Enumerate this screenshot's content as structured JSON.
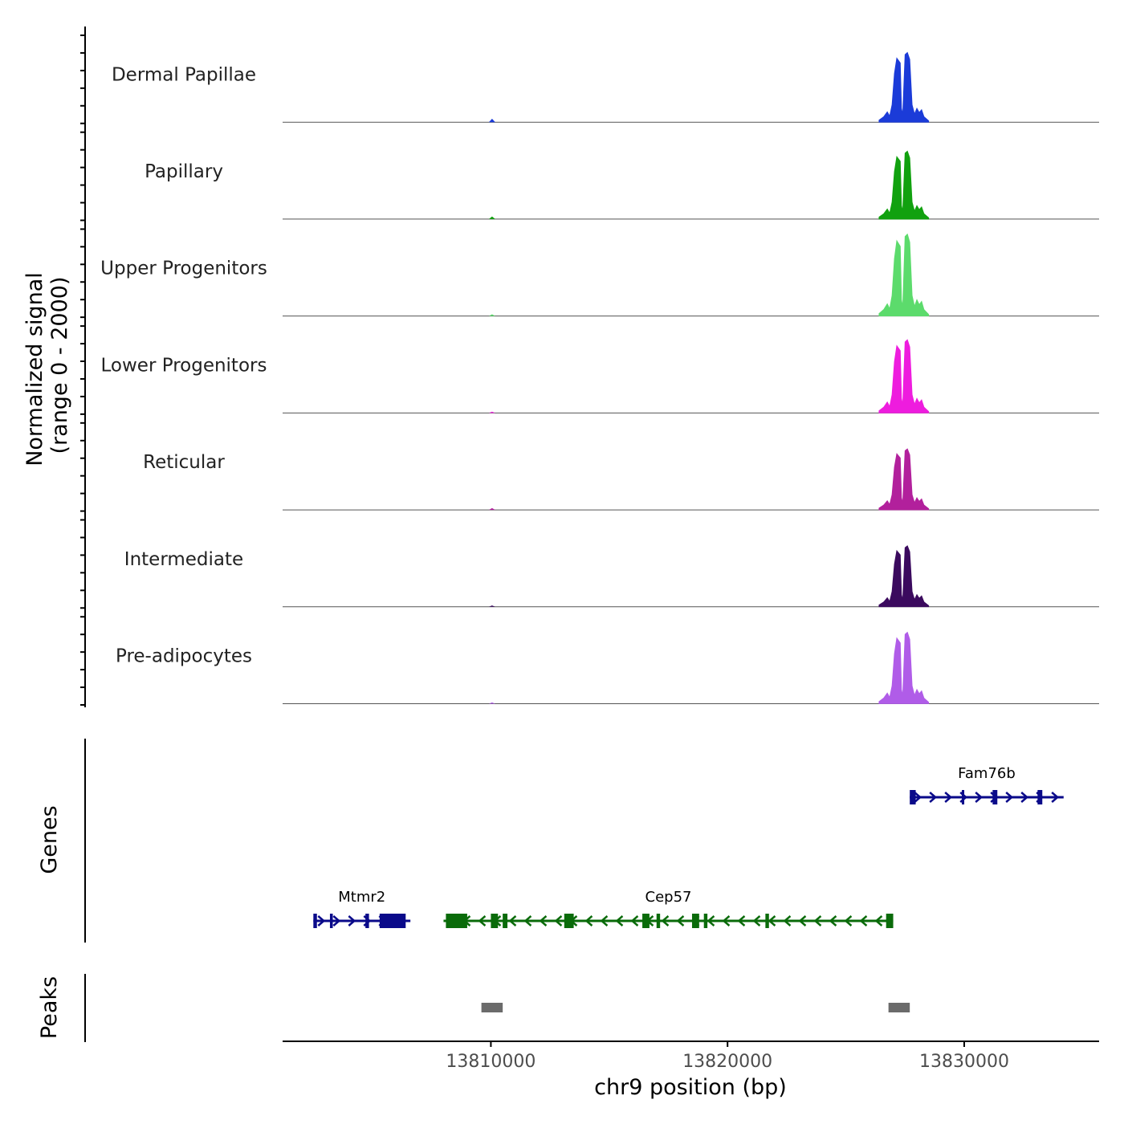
{
  "chart_data": {
    "type": "area",
    "ylabel_line1": "Normalized signal",
    "ylabel_line2": "(range 0 - 2000)",
    "xlabel": "chr9 position (bp)",
    "xlim": [
      13801200,
      13835700
    ],
    "x_ticks": [
      13810000,
      13820000,
      13830000
    ],
    "x_tick_labels": [
      "13810000",
      "13820000",
      "13830000"
    ],
    "peak_profile": {
      "x": [
        13826400,
        13826600,
        13826750,
        13826850,
        13826950,
        13827050,
        13827150,
        13827300,
        13827350,
        13827400,
        13827500,
        13827600,
        13827700,
        13827800,
        13827900,
        13828000,
        13828100,
        13828200,
        13828300,
        13828500
      ],
      "y": [
        0.03,
        0.08,
        0.15,
        0.09,
        0.25,
        0.7,
        0.92,
        0.85,
        0.2,
        0.12,
        0.97,
        1.0,
        0.9,
        0.25,
        0.12,
        0.2,
        0.14,
        0.18,
        0.08,
        0.02
      ]
    },
    "series": [
      {
        "name": "Dermal Papillae",
        "color": "#1b3bd8",
        "peak_height": 0.8,
        "small_peak": 0.04
      },
      {
        "name": "Papillary",
        "color": "#11a10f",
        "peak_height": 0.78,
        "small_peak": 0.03
      },
      {
        "name": "Upper Progenitors",
        "color": "#5cdb6c",
        "peak_height": 0.94,
        "small_peak": 0.02
      },
      {
        "name": "Lower Progenitors",
        "color": "#ee1cde",
        "peak_height": 0.84,
        "small_peak": 0.015
      },
      {
        "name": "Reticular",
        "color": "#b2209c",
        "peak_height": 0.7,
        "small_peak": 0.02
      },
      {
        "name": "Intermediate",
        "color": "#3b0a5e",
        "peak_height": 0.7,
        "small_peak": 0.015
      },
      {
        "name": "Pre-adipocytes",
        "color": "#b05ce8",
        "peak_height": 0.82,
        "small_peak": 0.015
      }
    ],
    "small_peak_x": 13810050,
    "genes_track": {
      "title": "Genes",
      "genes": [
        {
          "name": "Mtmr2",
          "color": "#0a0a8a",
          "strand": "+",
          "start": 13802500,
          "end": 13806600,
          "exons": [
            [
              13802500,
              13802650
            ],
            [
              13803200,
              13803320
            ],
            [
              13804700,
              13804850
            ],
            [
              13805300,
              13806400
            ]
          ],
          "row": 2
        },
        {
          "name": "Cep57",
          "color": "#0a6b0a",
          "strand": "-",
          "start": 13808000,
          "end": 13827000,
          "exons": [
            [
              13808100,
              13809000
            ],
            [
              13810000,
              13810300
            ],
            [
              13810500,
              13810700
            ],
            [
              13813100,
              13813500
            ],
            [
              13816400,
              13816700
            ],
            [
              13817000,
              13817150
            ],
            [
              13818500,
              13818800
            ],
            [
              13819000,
              13819150
            ],
            [
              13821600,
              13821750
            ],
            [
              13826700,
              13827000
            ]
          ],
          "row": 2
        },
        {
          "name": "Fam76b",
          "color": "#0a0a8a",
          "strand": "+",
          "start": 13827700,
          "end": 13834200,
          "exons": [
            [
              13827700,
              13827950
            ],
            [
              13829900,
              13830000
            ],
            [
              13831200,
              13831400
            ],
            [
              13833100,
              13833300
            ]
          ],
          "row": 1
        }
      ]
    },
    "peaks_track": {
      "title": "Peaks",
      "color": "#6b6b6b",
      "peaks": [
        [
          13809600,
          13810500
        ],
        [
          13826800,
          13827700
        ]
      ]
    }
  }
}
